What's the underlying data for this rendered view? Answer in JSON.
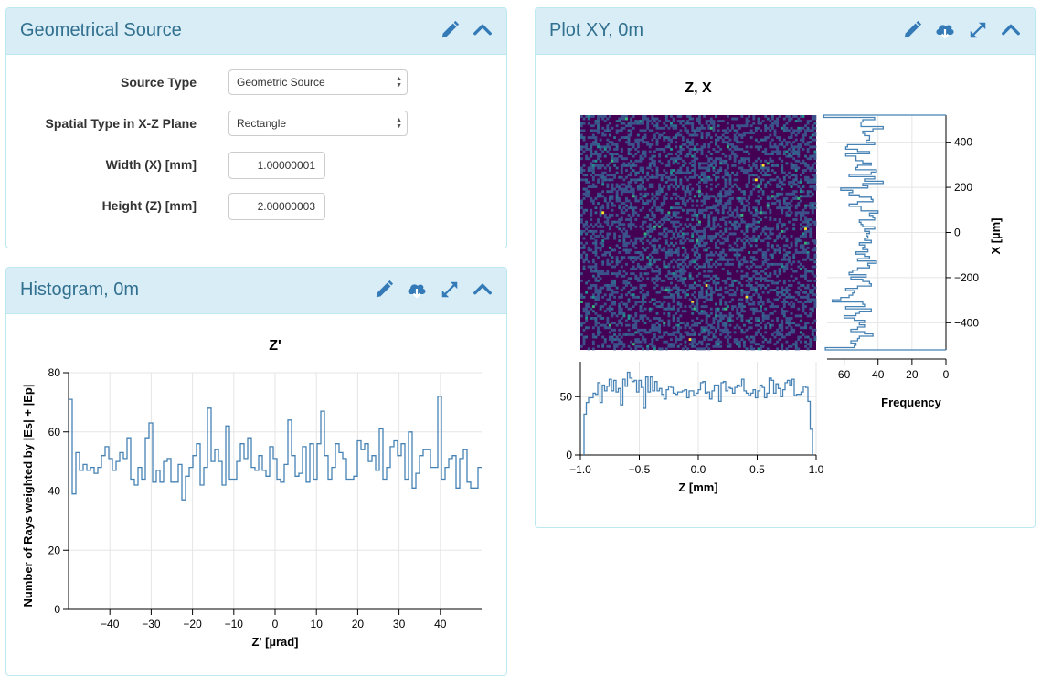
{
  "source_panel": {
    "title": "Geometrical Source",
    "fields": [
      {
        "label": "Source Type",
        "kind": "select",
        "value": "Geometric Source"
      },
      {
        "label": "Spatial Type in X-Z Plane",
        "kind": "select",
        "value": "Rectangle"
      },
      {
        "label": "Width (X) [mm]",
        "kind": "input",
        "value": "1.00000001"
      },
      {
        "label": "Height (Z) [mm]",
        "kind": "input",
        "value": "2.00000003"
      }
    ],
    "icons": [
      "pencil-icon",
      "chevron-up-icon"
    ]
  },
  "histogram_panel": {
    "title": "Histogram, 0m",
    "icons": [
      "pencil-icon",
      "cloud-download-icon",
      "expand-icon",
      "chevron-up-icon"
    ]
  },
  "plotxy_panel": {
    "title": "Plot XY, 0m",
    "icons": [
      "pencil-icon",
      "cloud-download-icon",
      "expand-icon",
      "chevron-up-icon"
    ]
  },
  "colors": {
    "panel_header_bg": "#d9edf7",
    "panel_title": "#31708f",
    "icon": "#337ab7",
    "line": "#4682b4",
    "heatmap_bg": "#440154"
  },
  "chart_data": [
    {
      "type": "line",
      "title": "Z'",
      "xlabel": "Z' [µrad]",
      "ylabel": "Number of Rays weighted by |Es| + |Ep|",
      "xlim": [
        -50,
        50
      ],
      "ylim": [
        0,
        80
      ],
      "xticks": [
        -40,
        -30,
        -20,
        -10,
        0,
        10,
        20,
        30,
        40
      ],
      "yticks": [
        0,
        20,
        40,
        60,
        80
      ],
      "grid": true,
      "x_step": 1,
      "x_start": -50,
      "values": [
        71,
        39,
        53,
        47,
        49,
        47,
        48,
        46,
        48,
        52,
        55,
        51,
        47,
        50,
        53,
        51,
        58,
        44,
        42,
        48,
        44,
        58,
        63,
        43,
        47,
        43,
        50,
        51,
        43,
        43,
        49,
        37,
        45,
        48,
        52,
        56,
        42,
        48,
        68,
        50,
        54,
        50,
        42,
        62,
        44,
        44,
        50,
        56,
        51,
        58,
        48,
        47,
        52,
        47,
        45,
        55,
        51,
        44,
        43,
        49,
        64,
        52,
        45,
        46,
        55,
        43,
        56,
        44,
        56,
        67,
        52,
        44,
        48,
        56,
        53,
        51,
        44,
        44,
        45,
        57,
        54,
        56,
        50,
        52,
        47,
        61,
        44,
        48,
        55,
        57,
        52,
        56,
        44,
        60,
        41,
        46,
        52,
        54,
        54,
        48,
        48,
        72,
        44,
        48,
        51,
        52,
        41,
        51,
        54,
        43,
        41,
        41,
        48
      ]
    },
    {
      "type": "heatmap",
      "title": "Z, X",
      "xlabel": "Z [mm]",
      "ylabel": "X [µm]",
      "xlim": [
        -1.0,
        1.0
      ],
      "ylim": [
        -520,
        520
      ],
      "bins": [
        100,
        100
      ],
      "colormap": "viridis",
      "bottom_histogram": {
        "x": "Z [mm]",
        "ylim": [
          0,
          80
        ],
        "yticks": [
          0,
          50
        ],
        "xticks": [
          -1.0,
          -0.5,
          0,
          0.5,
          1.0
        ],
        "typical_value": 55,
        "values": [
          35,
          45,
          49,
          49,
          53,
          52,
          62,
          45,
          60,
          55,
          59,
          65,
          55,
          64,
          54,
          57,
          43,
          65,
          59,
          71,
          66,
          63,
          64,
          54,
          64,
          58,
          40,
          67,
          54,
          67,
          55,
          63,
          55,
          57,
          52,
          48,
          56,
          59,
          58,
          53,
          52,
          54,
          54,
          55,
          56,
          49,
          55,
          55,
          51,
          53,
          56,
          62,
          63,
          53,
          54,
          48,
          55,
          60,
          60,
          46,
          62,
          63,
          55,
          58,
          57,
          53,
          58,
          60,
          59,
          65,
          55,
          53,
          51,
          53,
          56,
          49,
          55,
          60,
          58,
          49,
          53,
          66,
          64,
          53,
          61,
          57,
          50,
          56,
          62,
          64,
          60,
          65,
          51,
          52,
          52,
          54,
          59,
          58,
          46,
          22
        ]
      },
      "right_histogram": {
        "xlabel": "Frequency",
        "xlim": [
          70,
          0
        ],
        "xticks": [
          60,
          40,
          20,
          0
        ],
        "yticks": [
          400,
          200,
          0,
          -200,
          -400
        ],
        "values": [
          72,
          42,
          49,
          50,
          50,
          37,
          43,
          49,
          48,
          45,
          45,
          47,
          42,
          58,
          59,
          52,
          45,
          59,
          53,
          53,
          49,
          44,
          52,
          53,
          41,
          44,
          57,
          42,
          48,
          37,
          49,
          46,
          62,
          55,
          57,
          51,
          44,
          43,
          52,
          57,
          50,
          50,
          40,
          45,
          43,
          42,
          51,
          50,
          49,
          42,
          48,
          45,
          47,
          46,
          48,
          44,
          51,
          48,
          49,
          46,
          53,
          48,
          45,
          52,
          41,
          46,
          45,
          52,
          55,
          57,
          47,
          56,
          49,
          45,
          44,
          52,
          59,
          54,
          55,
          57,
          62,
          67,
          49,
          48,
          59,
          44,
          51,
          53,
          60,
          54,
          48,
          51,
          48,
          52,
          56,
          48,
          43,
          51,
          52,
          56,
          53,
          54,
          71
        ]
      }
    }
  ]
}
